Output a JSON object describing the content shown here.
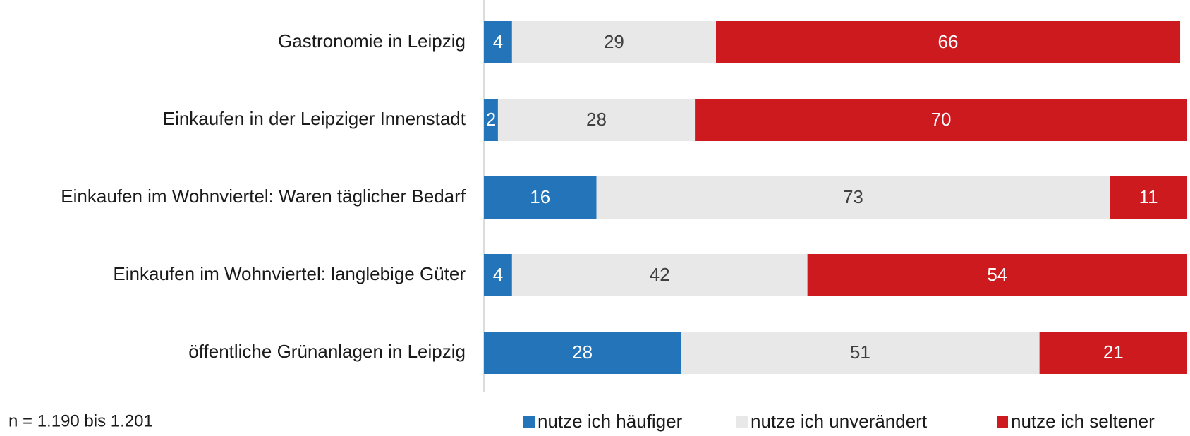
{
  "chart_data": {
    "type": "stacked_bar_horizontal",
    "categories": [
      "Gastronomie in Leipzig",
      "Einkaufen in der Leipziger Innenstadt",
      "Einkaufen im Wohnviertel: Waren täglicher Bedarf",
      "Einkaufen im Wohnviertel: langlebige Güter",
      "öffentliche Grünanlagen in Leipzig"
    ],
    "series": [
      {
        "name": "nutze ich häufiger",
        "color": "#2474b9",
        "label_color": "#ffffff",
        "values": [
          4,
          2,
          16,
          4,
          28
        ]
      },
      {
        "name": "nutze ich unverändert",
        "color": "#e8e8e8",
        "label_color": "#404040",
        "values": [
          29,
          28,
          73,
          42,
          51
        ]
      },
      {
        "name": "nutze ich seltener",
        "color": "#cc1a1f",
        "label_color": "#ffffff",
        "values": [
          66,
          70,
          11,
          54,
          21
        ]
      }
    ],
    "xlim": [
      0,
      100
    ],
    "legend": "bottom",
    "note": "n = 1.190 bis 1.201"
  }
}
